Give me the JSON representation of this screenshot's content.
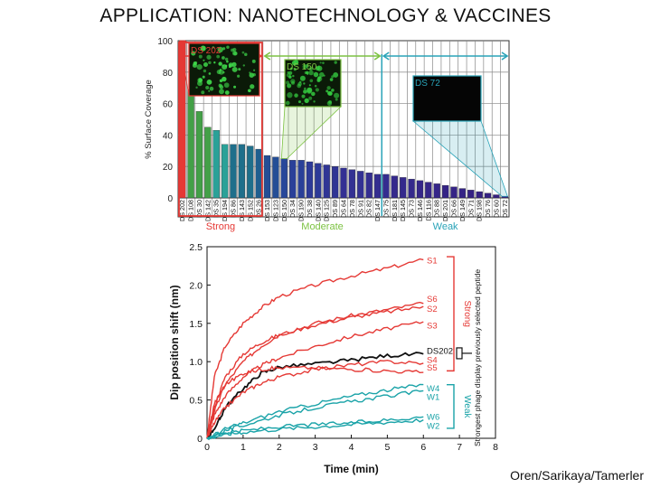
{
  "title": "APPLICATION: NANOTECHNOLOGY & VACCINES",
  "credit": "Oren/Sarikaya/Tamerler",
  "chart_data": [
    {
      "type": "bar",
      "ylabel": "% Surface Coverage",
      "ylim": [
        0,
        100
      ],
      "yticks": [
        0,
        20,
        40,
        60,
        80,
        100
      ],
      "grid": true,
      "categories": [
        "DS 202",
        "DS 108",
        "DS 30",
        "DS 142",
        "DS 35",
        "DS 194",
        "DS 86",
        "DS 143",
        "DS 152",
        "DS 26",
        "DS 153",
        "DS 123",
        "DS 150",
        "DS 34",
        "DS 190",
        "DS 38",
        "DS 140",
        "DS 125",
        "DS 89",
        "DS 64",
        "DS 78",
        "DS 91",
        "DS 82",
        "DS 147",
        "DS 75",
        "DS 181",
        "DS 145",
        "DS 73",
        "DS 146",
        "DS 116",
        "DS 88",
        "DS 201",
        "DS 66",
        "DS 149",
        "DS 71",
        "DS 198",
        "DS 76",
        "DS 60",
        "DS 72"
      ],
      "values": [
        100,
        69,
        55,
        45,
        43,
        34,
        34,
        34,
        33,
        31,
        27,
        26,
        25,
        24,
        24,
        23,
        22,
        21,
        20,
        19,
        18,
        17,
        16,
        15,
        15,
        14,
        13,
        12,
        11,
        10,
        9,
        8,
        7,
        6,
        5,
        4,
        3,
        2,
        1
      ],
      "bar_colors": [
        "#e53935",
        "#43a047",
        "#43a047",
        "#43a047",
        "#2aa198",
        "#2aa198",
        "#1f6f8b",
        "#1f6f8b",
        "#1f6f8b",
        "#1f5f8f",
        "#244e96",
        "#244e96",
        "#27479a",
        "#2a4099",
        "#2a4099",
        "#2d3a98",
        "#2d3a98",
        "#303595",
        "#303595",
        "#333093",
        "#333093",
        "#333093",
        "#342d90",
        "#342d90",
        "#342d90",
        "#34298c",
        "#34298c",
        "#34298c",
        "#352689",
        "#352689",
        "#352689",
        "#352486",
        "#352486",
        "#352486",
        "#352283",
        "#352283",
        "#352283",
        "#352080",
        "#352080"
      ],
      "groups": [
        {
          "label": "Strong",
          "color": "#e53935",
          "from": 0,
          "to": 9
        },
        {
          "label": "Moderate",
          "color": "#7cc242",
          "from": 10,
          "to": 23
        },
        {
          "label": "Weak",
          "color": "#29a3b8",
          "from": 24,
          "to": 38
        }
      ],
      "annotations": [
        {
          "label": "DS 202",
          "color": "#e53935",
          "bar": 0
        },
        {
          "label": "DS 150",
          "color": "#7cc242",
          "bar": 12
        },
        {
          "label": "DS 72",
          "color": "#29a3b8",
          "bar": 38
        }
      ]
    },
    {
      "type": "line",
      "xlabel": "Time (min)",
      "ylabel": "Dip position shift (nm)",
      "xlim": [
        0,
        8
      ],
      "ylim": [
        0,
        2.5
      ],
      "xticks": [
        0,
        1,
        2,
        3,
        4,
        5,
        6,
        7,
        8
      ],
      "yticks": [
        0,
        0.5,
        1.0,
        1.5,
        2.0,
        2.5
      ],
      "ytick_labels": [
        "0",
        "0.5",
        "1.0",
        "1.5",
        "2.0",
        "2.5"
      ],
      "series": [
        {
          "name": "S1",
          "color": "#e53935",
          "x": [
            0,
            0.2,
            0.5,
            1,
            1.5,
            2,
            3,
            4,
            5,
            6
          ],
          "y": [
            0,
            0.8,
            1.2,
            1.5,
            1.7,
            1.85,
            2.0,
            2.12,
            2.22,
            2.33
          ]
        },
        {
          "name": "S6",
          "color": "#e53935",
          "x": [
            0,
            0.2,
            0.5,
            1,
            1.5,
            2,
            3,
            4,
            5,
            6
          ],
          "y": [
            0,
            0.35,
            0.7,
            1.0,
            1.2,
            1.35,
            1.5,
            1.6,
            1.68,
            1.76
          ]
        },
        {
          "name": "S2",
          "color": "#e53935",
          "x": [
            0,
            0.2,
            0.5,
            1,
            1.5,
            2,
            3,
            4,
            5,
            6
          ],
          "y": [
            0,
            0.4,
            0.8,
            1.1,
            1.25,
            1.35,
            1.48,
            1.58,
            1.65,
            1.72
          ]
        },
        {
          "name": "S3",
          "color": "#e53935",
          "x": [
            0,
            0.2,
            0.5,
            1,
            1.5,
            2,
            3,
            4,
            5,
            6
          ],
          "y": [
            0,
            0.3,
            0.55,
            0.8,
            0.95,
            1.05,
            1.2,
            1.33,
            1.43,
            1.52
          ]
        },
        {
          "name": "DS202",
          "color": "#111111",
          "x": [
            0,
            0.3,
            0.5,
            1,
            1.5,
            2,
            3,
            4,
            5,
            6
          ],
          "y": [
            0,
            0.2,
            0.4,
            0.65,
            0.85,
            0.93,
            0.97,
            1.02,
            1.08,
            1.1
          ]
        },
        {
          "name": "S4",
          "color": "#e53935",
          "x": [
            0,
            0.2,
            0.5,
            1,
            1.5,
            2,
            3,
            4,
            5,
            6
          ],
          "y": [
            0,
            0.2,
            0.4,
            0.6,
            0.72,
            0.8,
            0.9,
            0.96,
            1.0,
            0.98
          ]
        },
        {
          "name": "S5",
          "color": "#e53935",
          "x": [
            0,
            0.2,
            0.5,
            1,
            1.5,
            2,
            3,
            4,
            5,
            6
          ],
          "y": [
            0,
            0.45,
            0.7,
            0.85,
            0.9,
            0.92,
            0.92,
            0.9,
            0.88,
            0.86
          ]
        },
        {
          "name": "W4",
          "color": "#1aa3a8",
          "x": [
            0,
            0.5,
            1,
            2,
            3,
            4,
            5,
            6
          ],
          "y": [
            0,
            0.12,
            0.2,
            0.35,
            0.45,
            0.55,
            0.63,
            0.7
          ]
        },
        {
          "name": "W1",
          "color": "#1aa3a8",
          "x": [
            0,
            0.5,
            1,
            2,
            3,
            4,
            5,
            6
          ],
          "y": [
            0,
            0.1,
            0.17,
            0.3,
            0.4,
            0.48,
            0.55,
            0.62
          ]
        },
        {
          "name": "W6",
          "color": "#1aa3a8",
          "x": [
            0,
            0.5,
            1,
            2,
            3,
            4,
            5,
            6
          ],
          "y": [
            0,
            0.07,
            0.1,
            0.15,
            0.18,
            0.2,
            0.24,
            0.28
          ]
        },
        {
          "name": "W2",
          "color": "#1aa3a8",
          "x": [
            0,
            0.5,
            1,
            2,
            3,
            4,
            5,
            6
          ],
          "y": [
            0,
            0.05,
            0.08,
            0.12,
            0.15,
            0.18,
            0.21,
            0.24
          ]
        }
      ],
      "group_labels": [
        {
          "label": "Strong",
          "color": "#e53935"
        },
        {
          "label": "Weak",
          "color": "#1aa3a8"
        },
        {
          "label": "Strongest phage display previously selected peptide",
          "color": "#111111"
        }
      ]
    }
  ]
}
